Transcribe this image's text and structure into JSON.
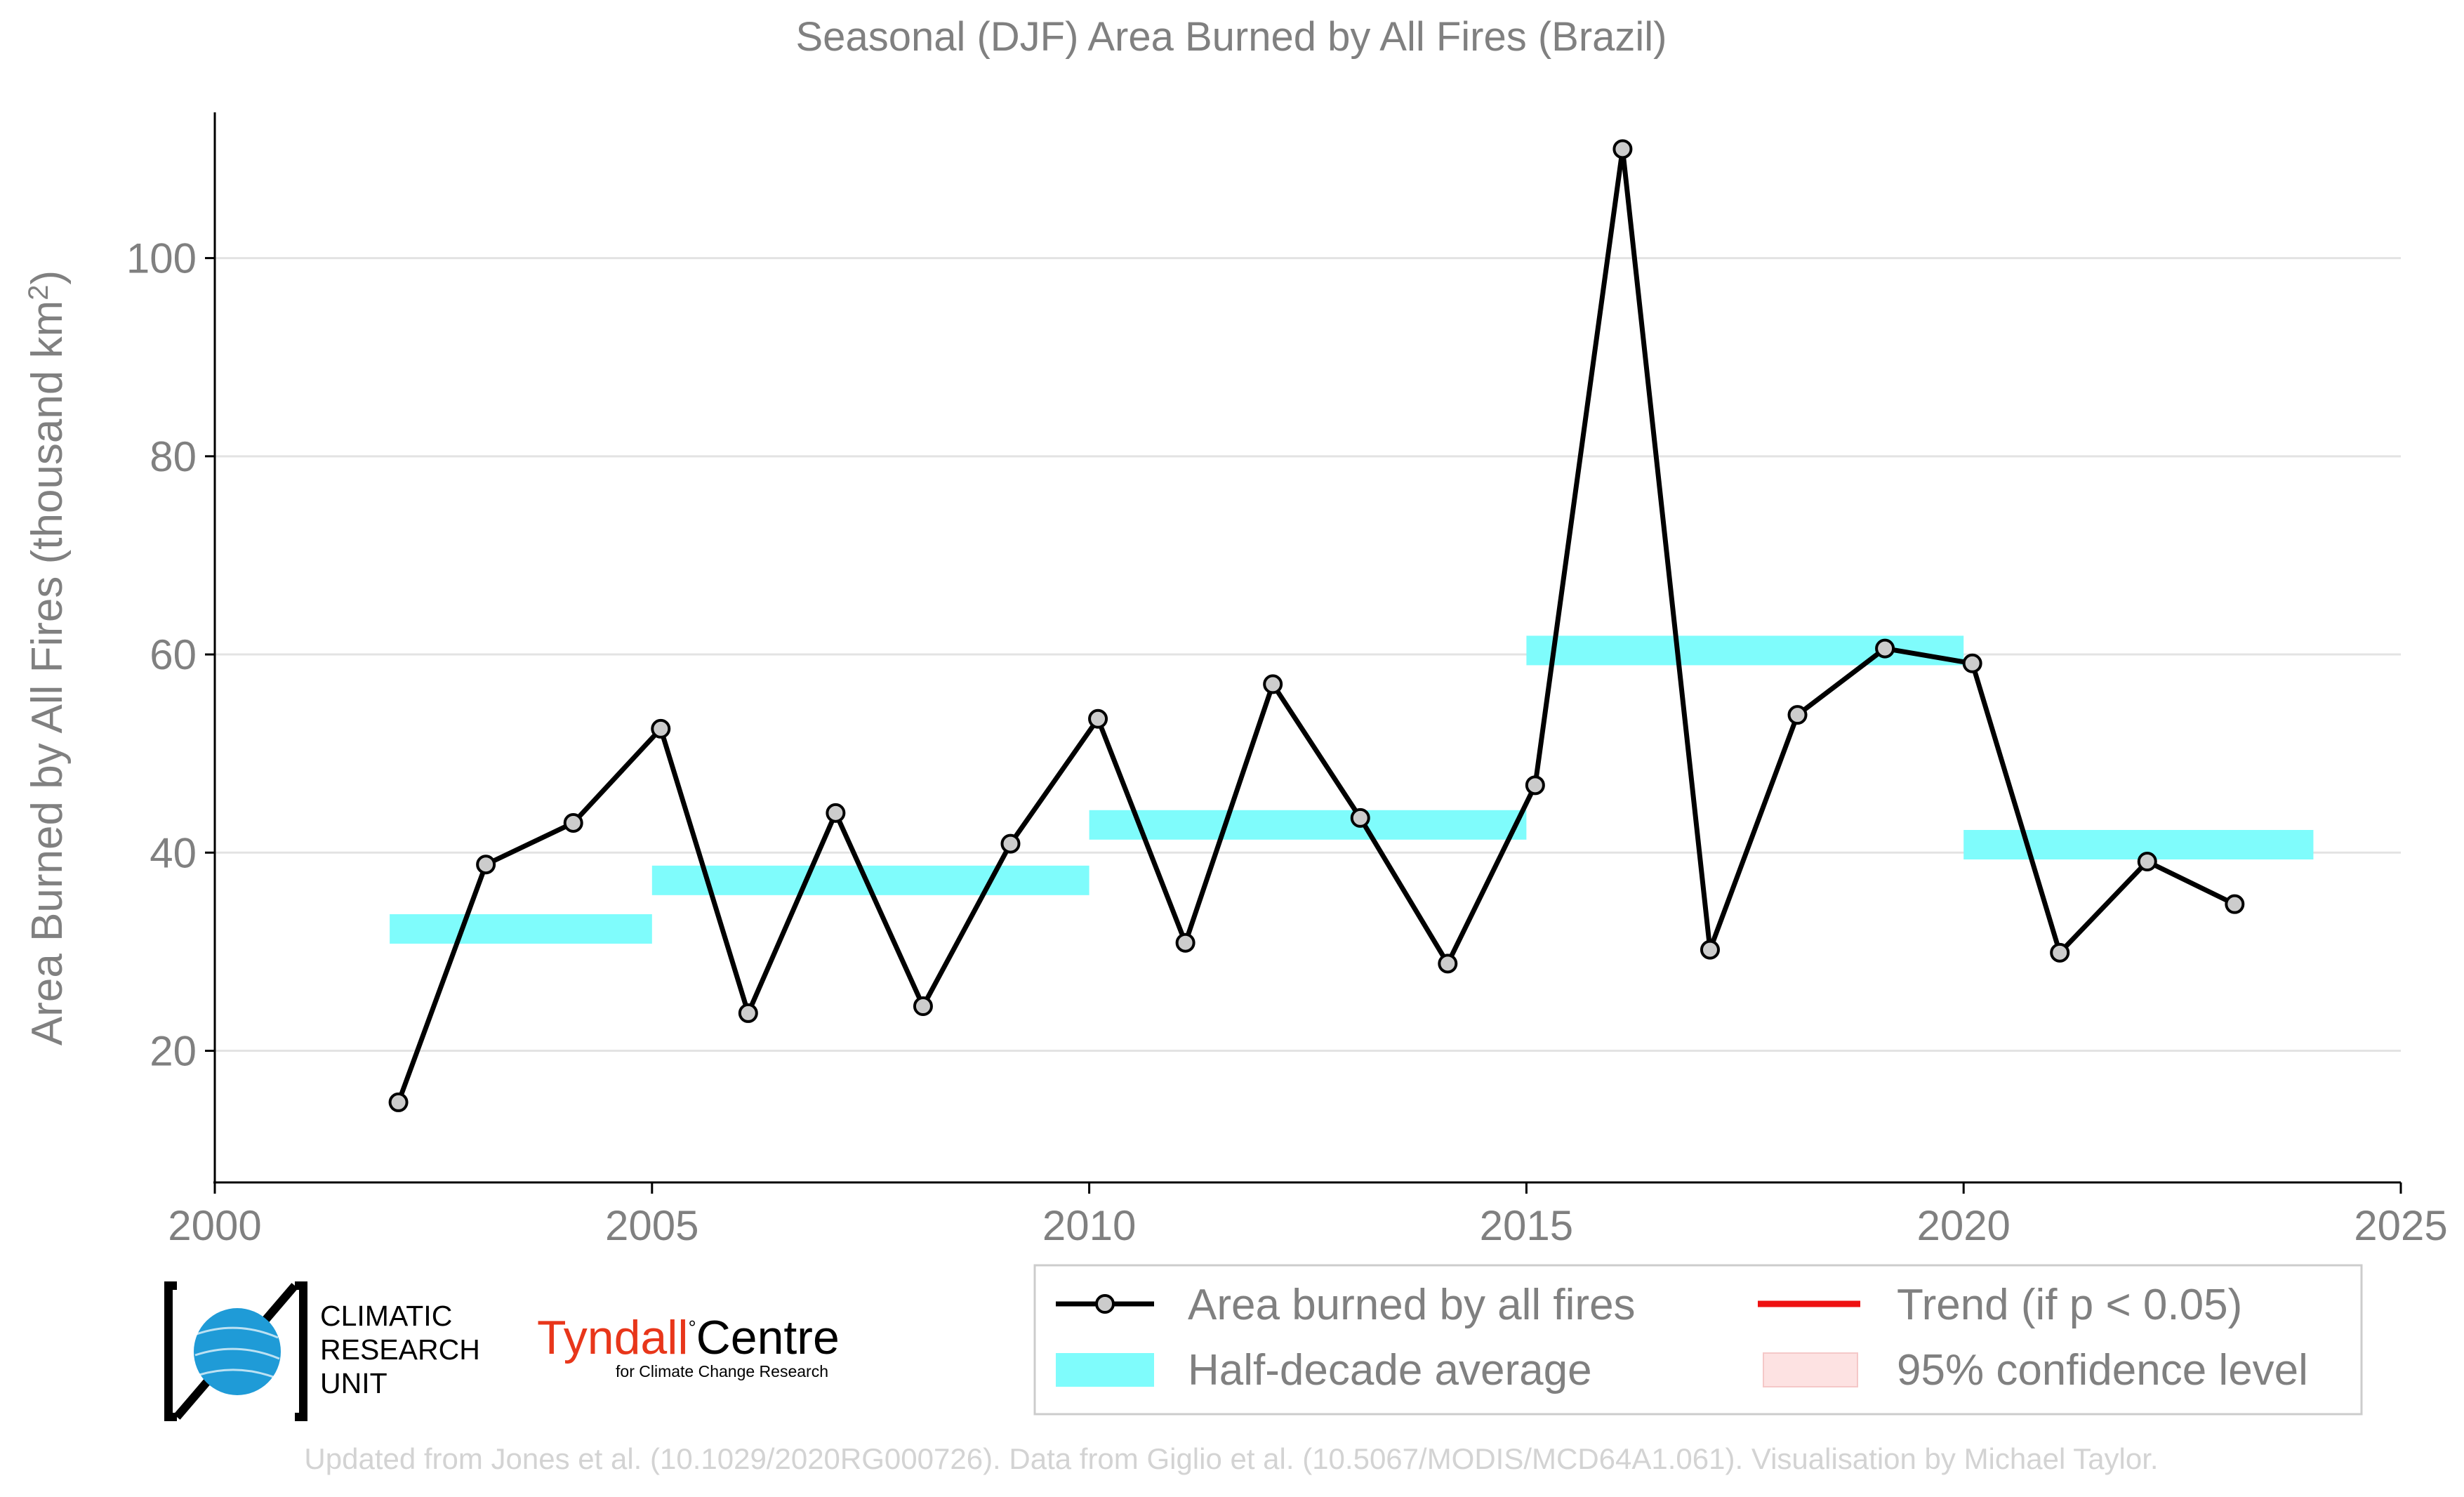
{
  "chart_data": {
    "type": "line",
    "title": "Seasonal (DJF) Area Burned by All Fires (Brazil)",
    "ylabel_prefix": "Area Burned by All Fires (thousand km",
    "ylabel_sup": "2",
    "ylabel_suffix": ")",
    "xlim": [
      2000,
      2025
    ],
    "ylim": [
      7,
      114
    ],
    "xticks": [
      2000,
      2005,
      2010,
      2015,
      2020,
      2025
    ],
    "yticks": [
      20,
      40,
      60,
      80,
      100
    ],
    "grid": true,
    "series": [
      {
        "name": "Area burned by all fires",
        "color": "#000000",
        "marker_fill": "#cccccc",
        "points": [
          {
            "x": 2002.1,
            "y": 14.8
          },
          {
            "x": 2003.1,
            "y": 38.8
          },
          {
            "x": 2004.1,
            "y": 43.0
          },
          {
            "x": 2005.1,
            "y": 52.5
          },
          {
            "x": 2006.1,
            "y": 23.8
          },
          {
            "x": 2007.1,
            "y": 44.0
          },
          {
            "x": 2008.1,
            "y": 24.5
          },
          {
            "x": 2009.1,
            "y": 40.9
          },
          {
            "x": 2010.1,
            "y": 53.5
          },
          {
            "x": 2011.1,
            "y": 30.9
          },
          {
            "x": 2012.1,
            "y": 57.0
          },
          {
            "x": 2013.1,
            "y": 43.5
          },
          {
            "x": 2014.1,
            "y": 28.8
          },
          {
            "x": 2015.1,
            "y": 46.8
          },
          {
            "x": 2016.1,
            "y": 111.0
          },
          {
            "x": 2017.1,
            "y": 30.2
          },
          {
            "x": 2018.1,
            "y": 53.9
          },
          {
            "x": 2019.1,
            "y": 60.6
          },
          {
            "x": 2020.1,
            "y": 59.1
          },
          {
            "x": 2021.1,
            "y": 29.9
          },
          {
            "x": 2022.1,
            "y": 39.1
          },
          {
            "x": 2023.1,
            "y": 34.8
          }
        ]
      }
    ],
    "half_decade_averages": {
      "name": "Half-decade average",
      "color": "#7ffcfc",
      "segments": [
        {
          "x0": 2002,
          "x1": 2005,
          "y": 32.3
        },
        {
          "x0": 2005,
          "x1": 2010,
          "y": 37.2
        },
        {
          "x0": 2010,
          "x1": 2015,
          "y": 42.8
        },
        {
          "x0": 2015,
          "x1": 2020,
          "y": 60.4
        },
        {
          "x0": 2020,
          "x1": 2024,
          "y": 40.8
        }
      ]
    },
    "legend": {
      "position": "bottom-right",
      "entries": [
        {
          "label": "Area burned by all fires",
          "kind": "line-marker",
          "color": "#000000"
        },
        {
          "label": "Trend (if p < 0.05)",
          "kind": "line",
          "color": "#ee1111"
        },
        {
          "label": "Half-decade average",
          "kind": "patch",
          "color": "#7ffcfc"
        },
        {
          "label": "95% confidence level",
          "kind": "patch",
          "color": "#fde2e2"
        }
      ]
    }
  },
  "logos": {
    "cru": {
      "line1": "CLIMATIC",
      "line2": "RESEARCH",
      "line3": "UNIT"
    },
    "tyndall": {
      "word1": "Tyndall",
      "degree": "°",
      "word2": "Centre",
      "sub": "for Climate Change Research",
      "color_word1": "#e8361a"
    }
  },
  "footer": "Updated from Jones et al. (10.1029/2020RG000726). Data from Giglio et al. (10.5067/MODIS/MCD64A1.061). Visualisation by Michael Taylor."
}
